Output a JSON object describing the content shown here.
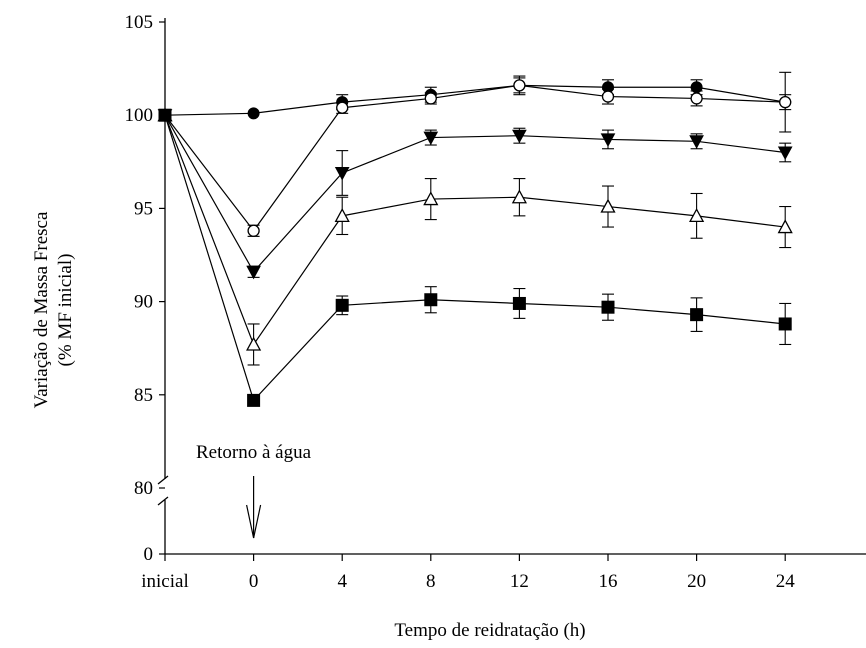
{
  "chart_data": {
    "type": "line",
    "xlabel": "Tempo de reidratação (h)",
    "ylabel_lines": [
      "Variação de Massa Fresca",
      "(% MF inicial)"
    ],
    "annotation": "Retorno à água",
    "categories": [
      "inicial",
      "0",
      "4",
      "8",
      "12",
      "16",
      "20",
      "24"
    ],
    "y_ticks": [
      0,
      80,
      85,
      90,
      95,
      100,
      105
    ],
    "y_axis_break": [
      0,
      80
    ],
    "ylim": [
      80,
      105
    ],
    "grid": false,
    "series": [
      {
        "marker": "filled-circle",
        "values": [
          100,
          100.1,
          100.7,
          101.1,
          101.6,
          101.5,
          101.5,
          100.7
        ],
        "errors": [
          0,
          0,
          0.4,
          0.4,
          0.4,
          0.4,
          0.4,
          0.4
        ]
      },
      {
        "marker": "open-circle",
        "values": [
          100,
          93.8,
          100.4,
          100.9,
          101.6,
          101.0,
          100.9,
          100.7
        ],
        "errors": [
          0,
          0.3,
          0.3,
          0.3,
          0.5,
          0.4,
          0.4,
          1.6
        ]
      },
      {
        "marker": "filled-triangle-down",
        "values": [
          100,
          91.6,
          96.9,
          98.8,
          98.9,
          98.7,
          98.6,
          98.0
        ],
        "errors": [
          0,
          0.3,
          1.2,
          0.4,
          0.4,
          0.5,
          0.4,
          0.5
        ]
      },
      {
        "marker": "open-triangle-up",
        "values": [
          100,
          87.7,
          94.6,
          95.5,
          95.6,
          95.1,
          94.6,
          94.0
        ],
        "errors": [
          0,
          1.1,
          1.0,
          1.1,
          1.0,
          1.1,
          1.2,
          1.1
        ]
      },
      {
        "marker": "filled-square",
        "values": [
          100,
          84.7,
          89.8,
          90.1,
          89.9,
          89.7,
          89.3,
          88.8
        ],
        "errors": [
          0,
          0.2,
          0.5,
          0.7,
          0.8,
          0.7,
          0.9,
          1.1
        ]
      }
    ]
  }
}
